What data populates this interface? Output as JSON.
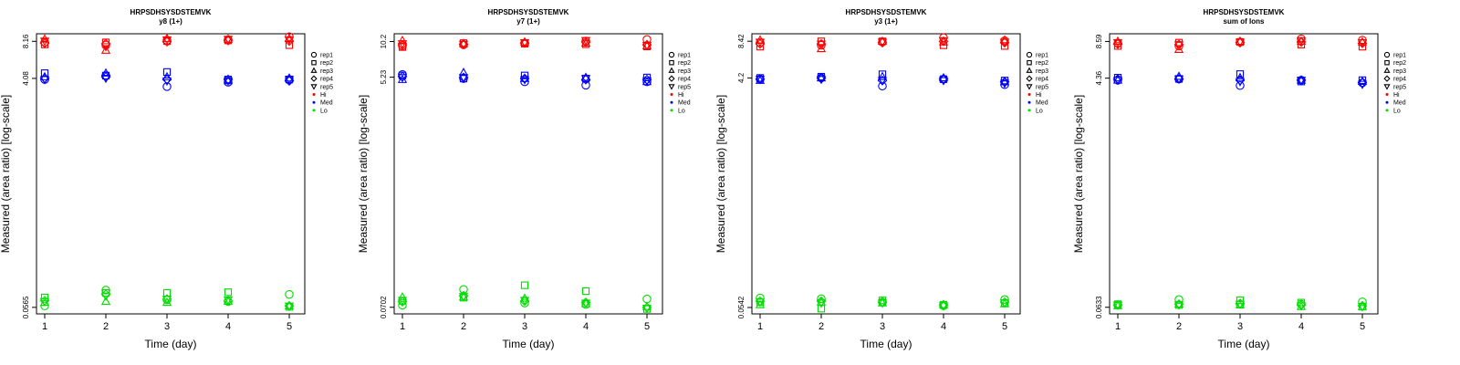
{
  "chart_data": [
    {
      "type": "scatter",
      "title": "HRPSDHSYSDSTEMVK",
      "subtitle": "y8 (1+)",
      "xlabel": "Time (day)",
      "ylabel": "Measured (area ratio) [log-scale]",
      "yscale": "log",
      "x_ticks": [
        "1",
        "2",
        "3",
        "4",
        "5"
      ],
      "y_ticks": [
        {
          "value": 0.0565,
          "label": "0.0565"
        },
        {
          "value": 4.08,
          "label": "4.08"
        },
        {
          "value": 8.16,
          "label": "8.16"
        }
      ],
      "ylim": [
        0.05,
        9.4
      ],
      "legend": [
        {
          "label": "rep1",
          "marker": "circle"
        },
        {
          "label": "rep2",
          "marker": "square"
        },
        {
          "label": "rep3",
          "marker": "triangle-up"
        },
        {
          "label": "rep4",
          "marker": "diamond"
        },
        {
          "label": "rep5",
          "marker": "triangle-down"
        },
        {
          "label": "Hi",
          "marker": "dot",
          "color": "#ff0000"
        },
        {
          "label": "Med",
          "marker": "dot",
          "color": "#0000ff"
        },
        {
          "label": "Lo",
          "marker": "dot",
          "color": "#00dd00"
        }
      ],
      "series": [
        {
          "name": "Hi",
          "color": "#ff0000",
          "x": [
            1,
            2,
            3,
            4,
            5
          ],
          "reps": {
            "rep1": [
              8.0,
              7.6,
              8.3,
              8.4,
              8.9
            ],
            "rep2": [
              7.7,
              8.0,
              8.2,
              8.3,
              7.6
            ],
            "rep3": [
              8.5,
              6.9,
              8.6,
              8.5,
              8.6
            ],
            "rep4": [
              7.9,
              7.8,
              8.1,
              8.3,
              8.2
            ],
            "rep5": [
              8.2,
              7.4,
              8.4,
              8.5,
              8.4
            ]
          }
        },
        {
          "name": "Med",
          "color": "#0000ff",
          "x": [
            1,
            2,
            3,
            4,
            5
          ],
          "reps": {
            "rep1": [
              4.0,
              4.3,
              3.5,
              3.8,
              4.0
            ],
            "rep2": [
              4.5,
              4.3,
              4.6,
              4.0,
              4.0
            ],
            "rep3": [
              4.2,
              4.5,
              4.2,
              3.9,
              4.1
            ],
            "rep4": [
              4.1,
              4.2,
              4.0,
              4.0,
              3.9
            ],
            "rep5": [
              4.0,
              4.1,
              3.9,
              3.9,
              4.0
            ]
          }
        },
        {
          "name": "Lo",
          "color": "#00dd00",
          "x": [
            1,
            2,
            3,
            4,
            5
          ],
          "reps": {
            "rep1": [
              0.058,
              0.078,
              0.065,
              0.063,
              0.072
            ],
            "rep2": [
              0.068,
              0.074,
              0.074,
              0.075,
              0.057
            ],
            "rep3": [
              0.062,
              0.063,
              0.062,
              0.063,
              0.058
            ],
            "rep4": [
              0.064,
              0.072,
              0.066,
              0.064,
              0.058
            ],
            "rep5": [
              0.063,
              0.07,
              0.066,
              0.065,
              0.058
            ]
          }
        }
      ]
    },
    {
      "type": "scatter",
      "title": "HRPSDHSYSDSTEMVK",
      "subtitle": "y7 (1+)",
      "xlabel": "Time (day)",
      "ylabel": "Measured (area ratio) [log-scale]",
      "yscale": "log",
      "x_ticks": [
        "1",
        "2",
        "3",
        "4",
        "5"
      ],
      "y_ticks": [
        {
          "value": 0.0702,
          "label": "0.0702"
        },
        {
          "value": 5.23,
          "label": "5.23"
        },
        {
          "value": 10.2,
          "label": "10.2"
        }
      ],
      "ylim": [
        0.062,
        11.8
      ],
      "legend": [
        {
          "label": "rep1",
          "marker": "circle"
        },
        {
          "label": "rep2",
          "marker": "square"
        },
        {
          "label": "rep3",
          "marker": "triangle-up"
        },
        {
          "label": "rep4",
          "marker": "diamond"
        },
        {
          "label": "rep5",
          "marker": "triangle-down"
        },
        {
          "label": "Hi",
          "marker": "dot",
          "color": "#ff0000"
        },
        {
          "label": "Med",
          "marker": "dot",
          "color": "#0000ff"
        },
        {
          "label": "Lo",
          "marker": "dot",
          "color": "#00dd00"
        }
      ],
      "series": [
        {
          "name": "Hi",
          "color": "#ff0000",
          "x": [
            1,
            2,
            3,
            4,
            5
          ],
          "reps": {
            "rep1": [
              9.4,
              9.6,
              9.9,
              10.3,
              10.6
            ],
            "rep2": [
              9.2,
              9.9,
              9.8,
              9.7,
              9.3
            ],
            "rep3": [
              10.4,
              9.8,
              10.1,
              9.9,
              9.4
            ],
            "rep4": [
              9.6,
              9.7,
              9.9,
              10.1,
              9.6
            ],
            "rep5": [
              9.8,
              9.7,
              10.0,
              10.4,
              9.5
            ]
          }
        },
        {
          "name": "Med",
          "color": "#0000ff",
          "x": [
            1,
            2,
            3,
            4,
            5
          ],
          "reps": {
            "rep1": [
              5.5,
              5.1,
              4.8,
              4.5,
              4.8
            ],
            "rep2": [
              5.4,
              5.1,
              5.4,
              5.1,
              5.2
            ],
            "rep3": [
              5.0,
              5.7,
              5.1,
              5.2,
              4.8
            ],
            "rep4": [
              5.3,
              5.2,
              5.1,
              5.0,
              5.0
            ],
            "rep5": [
              5.2,
              5.2,
              5.0,
              5.1,
              4.9
            ]
          }
        },
        {
          "name": "Lo",
          "color": "#00dd00",
          "x": [
            1,
            2,
            3,
            4,
            5
          ],
          "reps": {
            "rep1": [
              0.073,
              0.098,
              0.076,
              0.074,
              0.082
            ],
            "rep2": [
              0.079,
              0.084,
              0.106,
              0.095,
              0.068
            ],
            "rep3": [
              0.085,
              0.085,
              0.083,
              0.075,
              0.071
            ],
            "rep4": [
              0.078,
              0.087,
              0.079,
              0.077,
              0.07
            ],
            "rep5": [
              0.08,
              0.086,
              0.08,
              0.076,
              0.069
            ]
          }
        }
      ]
    },
    {
      "type": "scatter",
      "title": "HRPSDHSYSDSTEMVK",
      "subtitle": "y3 (1+)",
      "xlabel": "Time (day)",
      "ylabel": "Measured (area ratio) [log-scale]",
      "yscale": "log",
      "x_ticks": [
        "1",
        "2",
        "3",
        "4",
        "5"
      ],
      "y_ticks": [
        {
          "value": 0.0542,
          "label": "0.0542"
        },
        {
          "value": 4.2,
          "label": "4.2"
        },
        {
          "value": 8.42,
          "label": "8.42"
        }
      ],
      "ylim": [
        0.048,
        9.7
      ],
      "legend": [
        {
          "label": "rep1",
          "marker": "circle"
        },
        {
          "label": "rep2",
          "marker": "square"
        },
        {
          "label": "rep3",
          "marker": "triangle-up"
        },
        {
          "label": "rep4",
          "marker": "diamond"
        },
        {
          "label": "rep5",
          "marker": "triangle-down"
        },
        {
          "label": "Hi",
          "marker": "dot",
          "color": "#ff0000"
        },
        {
          "label": "Med",
          "marker": "dot",
          "color": "#0000ff"
        },
        {
          "label": "Lo",
          "marker": "dot",
          "color": "#00dd00"
        }
      ],
      "series": [
        {
          "name": "Hi",
          "color": "#ff0000",
          "x": [
            1,
            2,
            3,
            4,
            5
          ],
          "reps": {
            "rep1": [
              8.2,
              7.8,
              8.3,
              9.0,
              8.5
            ],
            "rep2": [
              7.6,
              8.4,
              8.4,
              7.8,
              7.7
            ],
            "rep3": [
              8.6,
              7.3,
              8.4,
              8.3,
              8.6
            ],
            "rep4": [
              8.0,
              8.0,
              8.2,
              8.4,
              8.2
            ],
            "rep5": [
              8.3,
              8.0,
              8.3,
              8.5,
              8.3
            ]
          }
        },
        {
          "name": "Med",
          "color": "#0000ff",
          "x": [
            1,
            2,
            3,
            4,
            5
          ],
          "reps": {
            "rep1": [
              4.1,
              4.2,
              3.6,
              4.1,
              3.7
            ],
            "rep2": [
              4.2,
              4.3,
              4.5,
              4.1,
              4.0
            ],
            "rep3": [
              4.0,
              4.2,
              4.3,
              4.2,
              3.9
            ],
            "rep4": [
              4.1,
              4.2,
              4.0,
              4.1,
              3.9
            ],
            "rep5": [
              4.1,
              4.1,
              4.0,
              4.0,
              3.8
            ]
          }
        },
        {
          "name": "Lo",
          "color": "#00dd00",
          "x": [
            1,
            2,
            3,
            4,
            5
          ],
          "reps": {
            "rep1": [
              0.065,
              0.064,
              0.06,
              0.056,
              0.063
            ],
            "rep2": [
              0.06,
              0.053,
              0.062,
              0.057,
              0.059
            ],
            "rep3": [
              0.057,
              0.06,
              0.059,
              0.057,
              0.058
            ],
            "rep4": [
              0.061,
              0.061,
              0.06,
              0.057,
              0.06
            ],
            "rep5": [
              0.06,
              0.059,
              0.059,
              0.056,
              0.059
            ]
          }
        }
      ]
    },
    {
      "type": "scatter",
      "title": "HRPSDHSYSDSTEMVK",
      "subtitle": "sum of Ions",
      "xlabel": "Time (day)",
      "ylabel": "Measured (area ratio) [log-scale]",
      "yscale": "log",
      "x_ticks": [
        "1",
        "2",
        "3",
        "4",
        "5"
      ],
      "y_ticks": [
        {
          "value": 0.0633,
          "label": "0.0633"
        },
        {
          "value": 4.36,
          "label": "4.36"
        },
        {
          "value": 8.59,
          "label": "8.59"
        }
      ],
      "ylim": [
        0.056,
        9.9
      ],
      "legend": [
        {
          "label": "rep1",
          "marker": "circle"
        },
        {
          "label": "rep2",
          "marker": "square"
        },
        {
          "label": "rep3",
          "marker": "triangle-up"
        },
        {
          "label": "rep4",
          "marker": "diamond"
        },
        {
          "label": "rep5",
          "marker": "triangle-down"
        },
        {
          "label": "Hi",
          "marker": "dot",
          "color": "#ff0000"
        },
        {
          "label": "Med",
          "marker": "dot",
          "color": "#0000ff"
        },
        {
          "label": "Lo",
          "marker": "dot",
          "color": "#00dd00"
        }
      ],
      "series": [
        {
          "name": "Hi",
          "color": "#ff0000",
          "x": [
            1,
            2,
            3,
            4,
            5
          ],
          "reps": {
            "rep1": [
              8.3,
              7.9,
              8.5,
              9.0,
              8.8
            ],
            "rep2": [
              7.9,
              8.4,
              8.5,
              8.1,
              7.8
            ],
            "rep3": [
              8.6,
              7.4,
              8.6,
              8.6,
              8.5
            ],
            "rep4": [
              8.2,
              8.1,
              8.4,
              8.5,
              8.3
            ],
            "rep5": [
              8.4,
              8.1,
              8.5,
              8.7,
              8.4
            ]
          }
        },
        {
          "name": "Med",
          "color": "#0000ff",
          "x": [
            1,
            2,
            3,
            4,
            5
          ],
          "reps": {
            "rep1": [
              4.2,
              4.3,
              3.8,
              4.2,
              4.0
            ],
            "rep2": [
              4.4,
              4.3,
              4.7,
              4.1,
              4.2
            ],
            "rep3": [
              4.2,
              4.5,
              4.4,
              4.2,
              4.1
            ],
            "rep4": [
              4.3,
              4.3,
              4.2,
              4.2,
              4.0
            ],
            "rep5": [
              4.2,
              4.3,
              4.1,
              4.2,
              3.9
            ]
          }
        },
        {
          "name": "Lo",
          "color": "#00dd00",
          "x": [
            1,
            2,
            3,
            4,
            5
          ],
          "reps": {
            "rep1": [
              0.066,
              0.073,
              0.067,
              0.067,
              0.07
            ],
            "rep2": [
              0.067,
              0.066,
              0.072,
              0.069,
              0.064
            ],
            "rep3": [
              0.065,
              0.067,
              0.066,
              0.064,
              0.064
            ],
            "rep4": [
              0.066,
              0.067,
              0.068,
              0.066,
              0.065
            ],
            "rep5": [
              0.066,
              0.066,
              0.067,
              0.065,
              0.064
            ]
          }
        }
      ]
    }
  ]
}
